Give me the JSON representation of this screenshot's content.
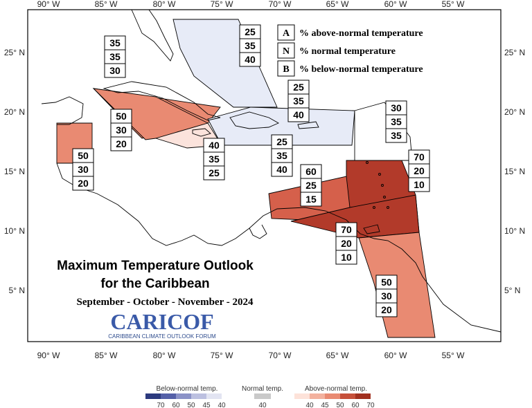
{
  "title": {
    "line1": "Maximum Temperature Outlook",
    "line2": "for the Caribbean",
    "period": "September - October - November - 2024"
  },
  "logo": {
    "name": "CARICOF",
    "subtitle": "CARIBBEAN CLIMATE OUTLOOK FORUM"
  },
  "axes": {
    "lon_ticks": [
      "90° W",
      "85° W",
      "80° W",
      "75° W",
      "70° W",
      "65° W",
      "60° W",
      "55° W"
    ],
    "lat_ticks": [
      "25° N",
      "20° N",
      "15° N",
      "10° N",
      "5° N"
    ]
  },
  "key": [
    {
      "letter": "A",
      "text": "% above-normal temperature"
    },
    {
      "letter": "N",
      "text": "% normal temperature"
    },
    {
      "letter": "B",
      "text": "% below-normal temperature"
    }
  ],
  "regions": [
    {
      "name": "bahamas",
      "fill": "#e7ebf7",
      "probs": [
        "25",
        "35",
        "40"
      ]
    },
    {
      "name": "cayman-cuba-west",
      "fill": "#e98a72",
      "probs": [
        "35",
        "35",
        "30"
      ]
    },
    {
      "name": "jamaica-central",
      "fill": "#e98a72",
      "probs": [
        "50",
        "30",
        "20"
      ]
    },
    {
      "name": "belize",
      "fill": "#e98a72",
      "probs": [
        "50",
        "30",
        "20"
      ]
    },
    {
      "name": "jamaica-east",
      "fill": "#fbe3dc",
      "probs": [
        "40",
        "35",
        "25"
      ]
    },
    {
      "name": "hispaniola-pr",
      "fill": "#e7ebf7",
      "probs": [
        "25",
        "35",
        "40"
      ]
    },
    {
      "name": "tci-north",
      "fill": "#e7ebf7",
      "probs": [
        "25",
        "35",
        "40"
      ]
    },
    {
      "name": "northern-antilles",
      "fill": "#ffffff",
      "probs": [
        "30",
        "35",
        "35"
      ]
    },
    {
      "name": "eastern-caribbean",
      "fill": "#b23a2a",
      "probs": [
        "70",
        "20",
        "10"
      ]
    },
    {
      "name": "abc-islands",
      "fill": "#d5604b",
      "probs": [
        "60",
        "25",
        "15"
      ]
    },
    {
      "name": "trinidad",
      "fill": "#b23a2a",
      "probs": [
        "70",
        "20",
        "10"
      ]
    },
    {
      "name": "guianas",
      "fill": "#e98a72",
      "probs": [
        "50",
        "30",
        "20"
      ]
    }
  ],
  "colorbar": {
    "below": {
      "label": "Below-normal temp.",
      "ticks": [
        "70",
        "60",
        "50",
        "45",
        "40"
      ],
      "colors": [
        "#2c3a7e",
        "#5560a8",
        "#8b92c7",
        "#bcc0e0",
        "#e2e4f2"
      ]
    },
    "normal": {
      "label": "Normal temp.",
      "ticks": [
        "40"
      ],
      "colors": [
        "#c9c9c9"
      ]
    },
    "above": {
      "label": "Above-normal temp.",
      "ticks": [
        "40",
        "45",
        "50",
        "60",
        "70"
      ],
      "colors": [
        "#fde2d9",
        "#f3b19e",
        "#e98a72",
        "#c6503a",
        "#a1301f"
      ]
    }
  }
}
